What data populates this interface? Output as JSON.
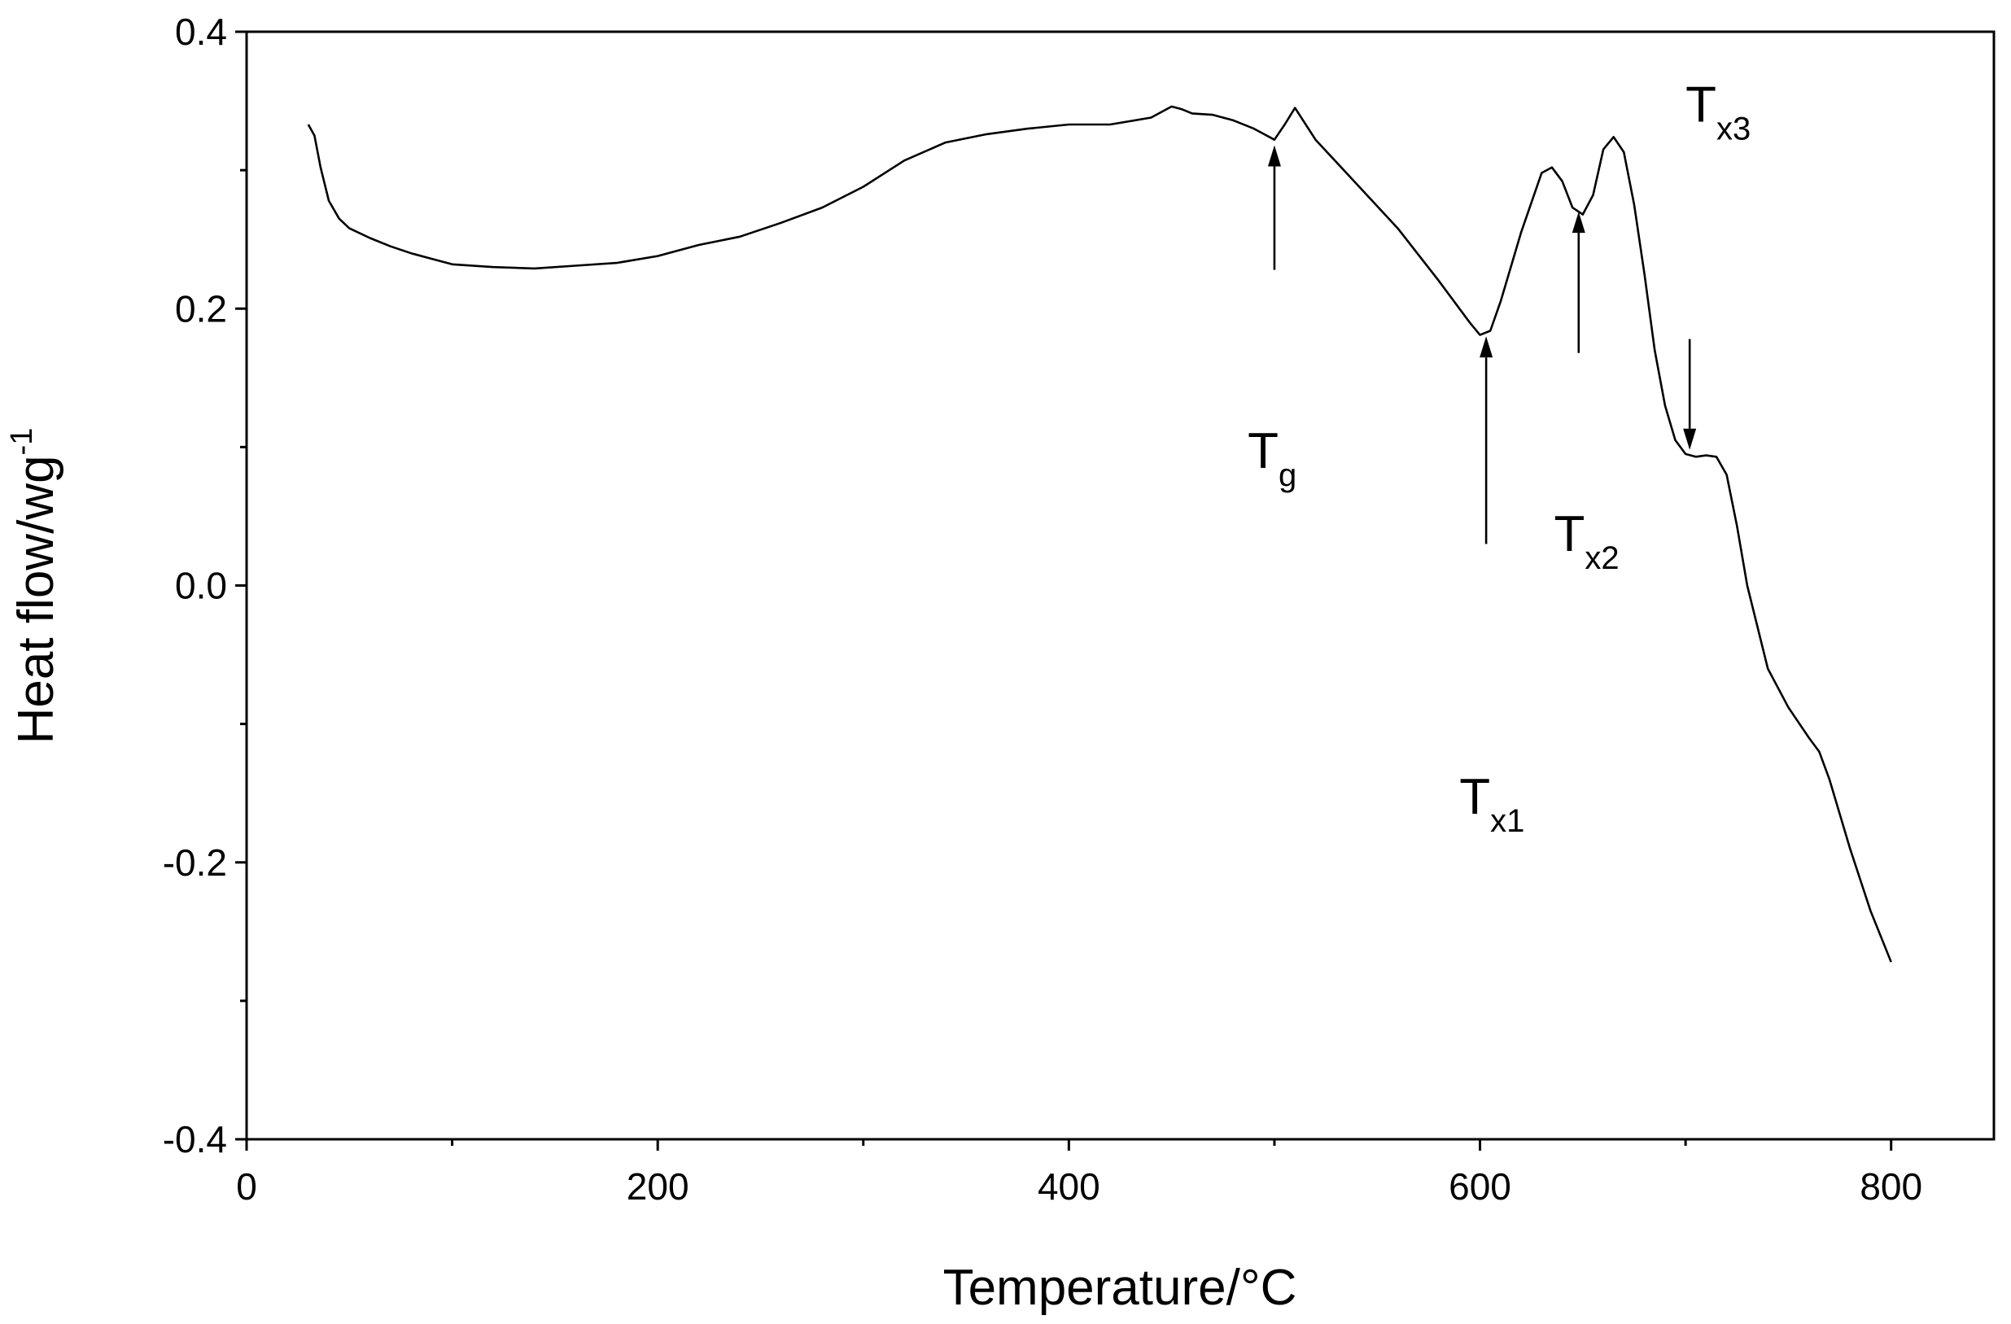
{
  "chart_data": {
    "type": "line",
    "xlabel": "Temperature/°C",
    "ylabel_main": "Heat flow/wg",
    "ylabel_sup": "-1",
    "xlim": [
      0,
      850
    ],
    "ylim": [
      -0.4,
      0.4
    ],
    "x_ticks": [
      0,
      200,
      400,
      600,
      800
    ],
    "x_tick_labels": [
      "0",
      "200",
      "400",
      "600",
      "800"
    ],
    "y_ticks": [
      0.4,
      0.2,
      0.0,
      -0.2,
      -0.4
    ],
    "y_tick_labels": [
      "0.4",
      "0.2",
      "0.0",
      "-0.2",
      "-0.4"
    ],
    "grid": false,
    "legend": "none",
    "series": [
      {
        "x": [
          30,
          33,
          36,
          40,
          45,
          50,
          60,
          70,
          80,
          90,
          100,
          120,
          140,
          160,
          180,
          200,
          220,
          240,
          260,
          280,
          300,
          320,
          340,
          360,
          380,
          400,
          420,
          440,
          450,
          455,
          460,
          470,
          480,
          490,
          495,
          500,
          505,
          510,
          520,
          540,
          560,
          580,
          595,
          600,
          605,
          610,
          620,
          630,
          635,
          640,
          645,
          650,
          655,
          660,
          665,
          670,
          675,
          680,
          685,
          690,
          695,
          700,
          705,
          710,
          715,
          720,
          725,
          730,
          740,
          750,
          760,
          765,
          770,
          780,
          790,
          800
        ],
        "y": [
          0.333,
          0.325,
          0.302,
          0.278,
          0.265,
          0.258,
          0.251,
          0.245,
          0.24,
          0.236,
          0.232,
          0.23,
          0.229,
          0.231,
          0.233,
          0.238,
          0.246,
          0.252,
          0.262,
          0.273,
          0.288,
          0.307,
          0.32,
          0.326,
          0.33,
          0.333,
          0.333,
          0.338,
          0.346,
          0.344,
          0.341,
          0.34,
          0.336,
          0.33,
          0.326,
          0.322,
          0.333,
          0.345,
          0.322,
          0.29,
          0.258,
          0.22,
          0.19,
          0.181,
          0.184,
          0.205,
          0.255,
          0.298,
          0.302,
          0.292,
          0.273,
          0.268,
          0.282,
          0.315,
          0.324,
          0.313,
          0.275,
          0.225,
          0.17,
          0.13,
          0.105,
          0.095,
          0.093,
          0.094,
          0.093,
          0.08,
          0.043,
          0.0,
          -0.06,
          -0.088,
          -0.11,
          -0.12,
          -0.14,
          -0.19,
          -0.235,
          -0.272
        ]
      }
    ],
    "annotations": [
      {
        "main": "T",
        "sub": "g",
        "arrow_x": 500,
        "arrow_tip_y": 0.318,
        "arrow_tail_y": 0.228,
        "direction": "up",
        "label_x": 487,
        "label_y": 0.085
      },
      {
        "main": "T",
        "sub": "x1",
        "arrow_x": 603,
        "arrow_tip_y": 0.18,
        "arrow_tail_y": 0.03,
        "direction": "up",
        "label_x": 590,
        "label_y": -0.165
      },
      {
        "main": "T",
        "sub": "x2",
        "arrow_x": 648,
        "arrow_tip_y": 0.27,
        "arrow_tail_y": 0.168,
        "direction": "up",
        "label_x": 636,
        "label_y": 0.025
      },
      {
        "main": "T",
        "sub": "x3",
        "arrow_x": 702,
        "arrow_tip_y": 0.098,
        "arrow_tail_y": 0.178,
        "direction": "down",
        "label_x": 700,
        "label_y": 0.335
      }
    ]
  }
}
